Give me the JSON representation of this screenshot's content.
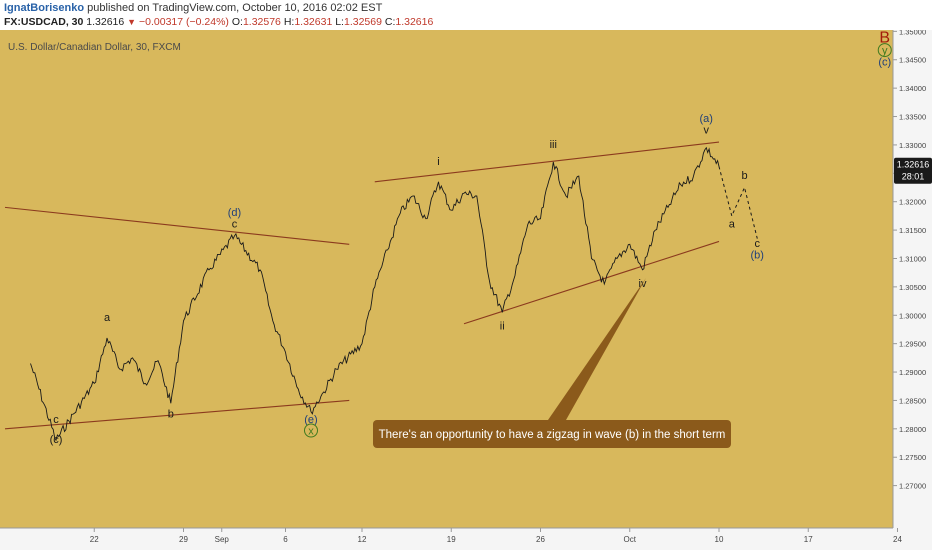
{
  "header": {
    "author": "IgnatBorisenko",
    "published": "published on TradingView.com, October 10, 2016 02:02 EST",
    "symbol_interval": "FX:USDCAD, 30",
    "last": "1.32616",
    "change": "−0.00317 (−0.24%)",
    "open_label": "O:",
    "open": "1.32576",
    "high_label": "H:",
    "high": "1.32631",
    "low_label": "L:",
    "low": "1.32569",
    "close_label": "C:",
    "close": "1.32616"
  },
  "colors": {
    "background": "#d8b85c",
    "price_line": "#1a1a1a",
    "trend_line": "#8b3a1e",
    "annotation_bg": "#8b5a1b",
    "annotation_text": "#ffffff",
    "price_tag_bg": "#1a1a1a",
    "wave_blue": "#1f3f7a",
    "wave_red": "#a31b0a",
    "wave_green": "#3f7a1f"
  },
  "chart_data": {
    "type": "line",
    "title": "U.S. Dollar/Canadian Dollar, 30, FXCM",
    "ylim": [
      1.265,
      1.352
    ],
    "yticks": [
      "1.35000",
      "1.34500",
      "1.34000",
      "1.33500",
      "1.33000",
      "1.32500",
      "1.32000",
      "1.31500",
      "1.31000",
      "1.30500",
      "1.30000",
      "1.29500",
      "1.29000",
      "1.28500",
      "1.28000",
      "1.27500",
      "1.27000"
    ],
    "xticks": [
      "22",
      "29",
      "Sep",
      "6",
      "12",
      "19",
      "26",
      "Oct",
      "10",
      "17",
      "24"
    ],
    "last_price": "1.32616",
    "countdown": "28:01",
    "pivots": [
      {
        "date": "2016-08-17",
        "price": 1.2915
      },
      {
        "date": "2016-08-19",
        "price": 1.278
      },
      {
        "date": "2016-08-22",
        "price": 1.288
      },
      {
        "date": "2016-08-23",
        "price": 1.296
      },
      {
        "date": "2016-08-24",
        "price": 1.2905
      },
      {
        "date": "2016-08-25",
        "price": 1.2925
      },
      {
        "date": "2016-08-26",
        "price": 1.288
      },
      {
        "date": "2016-08-27",
        "price": 1.292
      },
      {
        "date": "2016-08-28",
        "price": 1.2845
      },
      {
        "date": "2016-08-29",
        "price": 1.299
      },
      {
        "date": "2016-08-31",
        "price": 1.308
      },
      {
        "date": "2016-09-02",
        "price": 1.314
      },
      {
        "date": "2016-09-04",
        "price": 1.308
      },
      {
        "date": "2016-09-05",
        "price": 1.299
      },
      {
        "date": "2016-09-06",
        "price": 1.2935
      },
      {
        "date": "2016-09-07",
        "price": 1.287
      },
      {
        "date": "2016-09-08",
        "price": 1.283
      },
      {
        "date": "2016-09-09",
        "price": 1.2865
      },
      {
        "date": "2016-09-10",
        "price": 1.2905
      },
      {
        "date": "2016-09-12",
        "price": 1.295
      },
      {
        "date": "2016-09-13",
        "price": 1.305
      },
      {
        "date": "2016-09-14",
        "price": 1.3115
      },
      {
        "date": "2016-09-15",
        "price": 1.318
      },
      {
        "date": "2016-09-16",
        "price": 1.321
      },
      {
        "date": "2016-09-17",
        "price": 1.317
      },
      {
        "date": "2016-09-18",
        "price": 1.3235
      },
      {
        "date": "2016-09-19",
        "price": 1.3185
      },
      {
        "date": "2016-09-20",
        "price": 1.3215
      },
      {
        "date": "2016-09-21",
        "price": 1.321
      },
      {
        "date": "2016-09-22",
        "price": 1.306
      },
      {
        "date": "2016-09-23",
        "price": 1.3005
      },
      {
        "date": "2016-09-24",
        "price": 1.307
      },
      {
        "date": "2016-09-25",
        "price": 1.316
      },
      {
        "date": "2016-09-26",
        "price": 1.317
      },
      {
        "date": "2016-09-27",
        "price": 1.327
      },
      {
        "date": "2016-09-28",
        "price": 1.321
      },
      {
        "date": "2016-09-29",
        "price": 1.3245
      },
      {
        "date": "2016-09-30",
        "price": 1.31
      },
      {
        "date": "2016-10-01",
        "price": 1.3055
      },
      {
        "date": "2016-10-02",
        "price": 1.31
      },
      {
        "date": "2016-10-03",
        "price": 1.3125
      },
      {
        "date": "2016-10-04",
        "price": 1.308
      },
      {
        "date": "2016-10-05",
        "price": 1.315
      },
      {
        "date": "2016-10-06",
        "price": 1.319
      },
      {
        "date": "2016-10-07",
        "price": 1.323
      },
      {
        "date": "2016-10-08",
        "price": 1.3245
      },
      {
        "date": "2016-10-09",
        "price": 1.3295
      },
      {
        "date": "2016-10-10",
        "price": 1.3262
      }
    ],
    "projection": [
      {
        "date": "2016-10-10",
        "price": 1.3262
      },
      {
        "date": "2016-10-11",
        "price": 1.3175
      },
      {
        "date": "2016-10-12",
        "price": 1.3225
      },
      {
        "date": "2016-10-13",
        "price": 1.3135
      }
    ],
    "trendlines": [
      {
        "from": {
          "date": "2016-08-15",
          "price": 1.319
        },
        "to": {
          "date": "2016-09-11",
          "price": 1.3125
        }
      },
      {
        "from": {
          "date": "2016-08-15",
          "price": 1.28
        },
        "to": {
          "date": "2016-09-11",
          "price": 1.285
        }
      },
      {
        "from": {
          "date": "2016-09-13",
          "price": 1.3235
        },
        "to": {
          "date": "2016-10-10",
          "price": 1.3305
        }
      },
      {
        "from": {
          "date": "2016-09-20",
          "price": 1.2985
        },
        "to": {
          "date": "2016-10-10",
          "price": 1.313
        }
      }
    ],
    "wave_labels": [
      {
        "text": "c",
        "date": "2016-08-19",
        "price": 1.281,
        "color": "#1a1a1a"
      },
      {
        "text": "(c)",
        "date": "2016-08-19",
        "price": 1.2775,
        "color": "#1a1a1a"
      },
      {
        "text": "a",
        "date": "2016-08-23",
        "price": 1.299,
        "color": "#1a1a1a"
      },
      {
        "text": "b",
        "date": "2016-08-28",
        "price": 1.282,
        "color": "#1a1a1a"
      },
      {
        "text": "(d)",
        "date": "2016-09-02",
        "price": 1.3175,
        "color": "#1f3f7a"
      },
      {
        "text": "c",
        "date": "2016-09-02",
        "price": 1.3155,
        "color": "#1a1a1a"
      },
      {
        "text": "(e)",
        "date": "2016-09-08",
        "price": 1.281,
        "color": "#1f3f7a"
      },
      {
        "text": "x",
        "date": "2016-09-08",
        "price": 1.279,
        "color": "#3f7a1f"
      },
      {
        "text": "i",
        "date": "2016-09-18",
        "price": 1.3265,
        "color": "#1a1a1a"
      },
      {
        "text": "ii",
        "date": "2016-09-23",
        "price": 1.2975,
        "color": "#1a1a1a"
      },
      {
        "text": "iii",
        "date": "2016-09-27",
        "price": 1.3295,
        "color": "#1a1a1a"
      },
      {
        "text": "iv",
        "date": "2016-10-04",
        "price": 1.305,
        "color": "#1a1a1a"
      },
      {
        "text": "(a)",
        "date": "2016-10-09",
        "price": 1.334,
        "color": "#1f3f7a"
      },
      {
        "text": "v",
        "date": "2016-10-09",
        "price": 1.332,
        "color": "#1a1a1a"
      },
      {
        "text": "a",
        "date": "2016-10-11",
        "price": 1.3155,
        "color": "#1a1a1a"
      },
      {
        "text": "b",
        "date": "2016-10-12",
        "price": 1.324,
        "color": "#1a1a1a"
      },
      {
        "text": "c",
        "date": "2016-10-13",
        "price": 1.312,
        "color": "#1a1a1a"
      },
      {
        "text": "(b)",
        "date": "2016-10-13",
        "price": 1.31,
        "color": "#1f3f7a"
      },
      {
        "text": "B",
        "date": "2016-10-23",
        "price": 1.348,
        "color": "#a31b0a"
      },
      {
        "text": "y",
        "date": "2016-10-23",
        "price": 1.346,
        "color": "#3f7a1f"
      },
      {
        "text": "(c)",
        "date": "2016-10-23",
        "price": 1.344,
        "color": "#1f3f7a"
      }
    ],
    "annotation": "There's an opportunity to have a zigzag in wave (b) in the short term"
  }
}
